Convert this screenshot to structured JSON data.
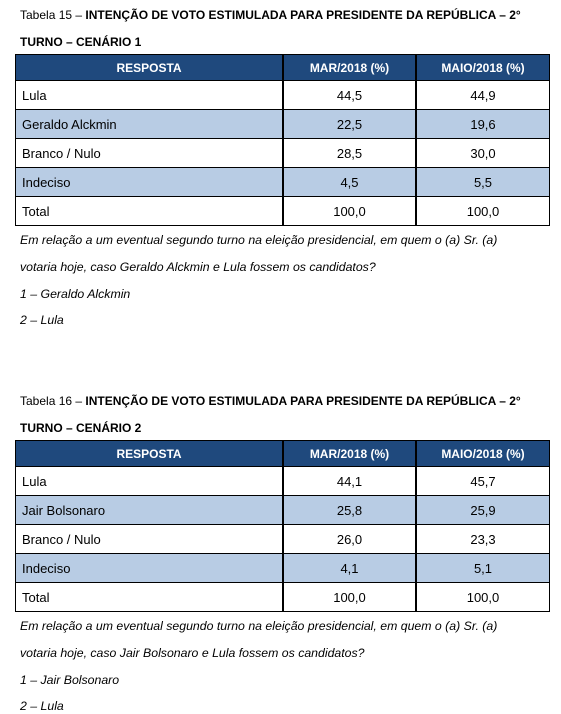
{
  "tables": [
    {
      "label": "Tabela 15 –",
      "title_lines": [
        "INTENÇÃO DE VOTO ESTIMULADA PARA PRESIDENTE DA REPÚBLICA – 2°",
        "TURNO – CENÁRIO 1"
      ],
      "headers": [
        "RESPOSTA",
        "MAR/2018 (%)",
        "MAIO/2018 (%)"
      ],
      "rows": [
        [
          "Lula",
          "44,5",
          "44,9"
        ],
        [
          "Geraldo Alckmin",
          "22,5",
          "19,6"
        ],
        [
          "Branco / Nulo",
          "28,5",
          "30,0"
        ],
        [
          "Indeciso",
          "4,5",
          "5,5"
        ],
        [
          "Total",
          "100,0",
          "100,0"
        ]
      ],
      "question_lines": [
        "Em relação a um eventual segundo turno na eleição presidencial, em quem o (a) Sr. (a)",
        "votaria hoje, caso Geraldo Alckmin e Lula fossem os candidatos?"
      ],
      "options": [
        "1 – Geraldo Alckmin",
        "2 – Lula"
      ]
    },
    {
      "label": "Tabela 16 –",
      "title_lines": [
        "INTENÇÃO DE VOTO ESTIMULADA PARA PRESIDENTE DA REPÚBLICA – 2°",
        "TURNO – CENÁRIO 2"
      ],
      "headers": [
        "RESPOSTA",
        "MAR/2018 (%)",
        "MAIO/2018 (%)"
      ],
      "rows": [
        [
          "Lula",
          "44,1",
          "45,7"
        ],
        [
          "Jair Bolsonaro",
          "25,8",
          "25,9"
        ],
        [
          "Branco / Nulo",
          "26,0",
          "23,3"
        ],
        [
          "Indeciso",
          "4,1",
          "5,1"
        ],
        [
          "Total",
          "100,0",
          "100,0"
        ]
      ],
      "question_lines": [
        "Em relação a um eventual segundo turno na eleição presidencial, em quem o (a) Sr. (a)",
        "votaria hoje, caso Jair Bolsonaro e Lula fossem os candidatos?"
      ],
      "options": [
        "1 – Jair Bolsonaro",
        "2 – Lula"
      ]
    }
  ]
}
